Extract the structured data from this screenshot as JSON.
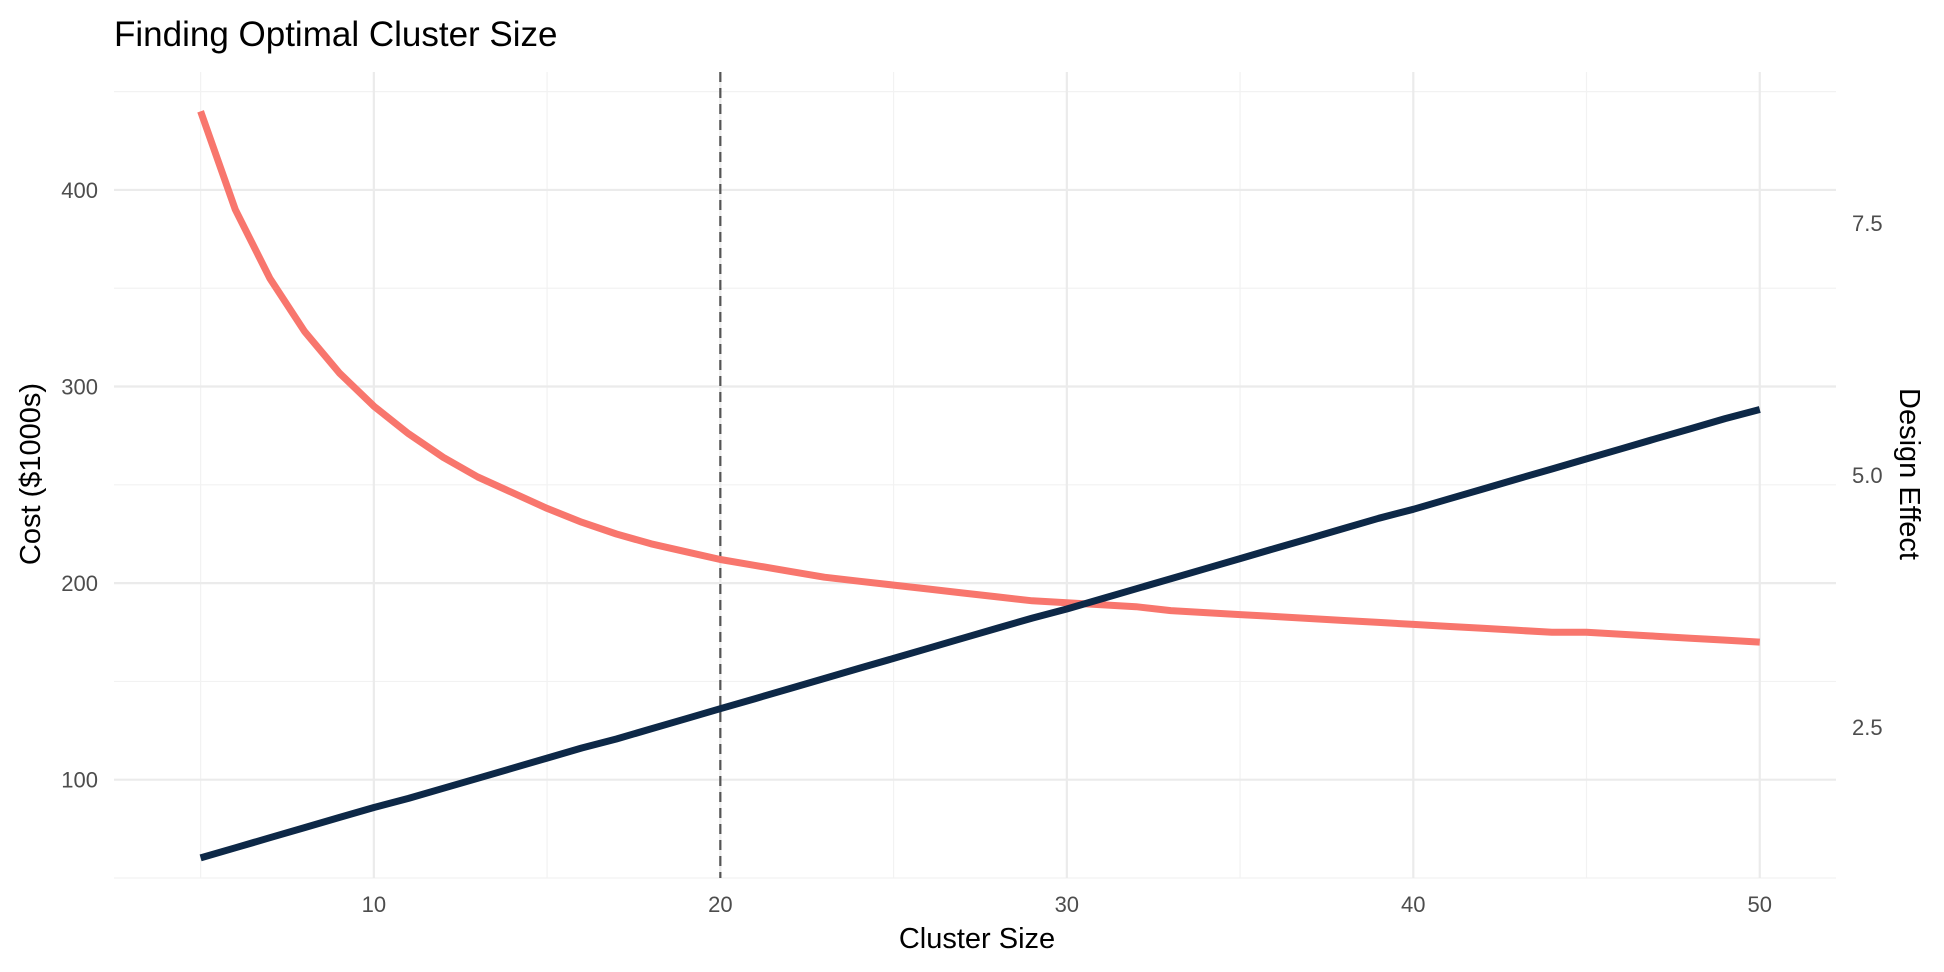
{
  "chart_data": {
    "type": "line",
    "title": "Finding Optimal Cluster Size",
    "xlabel": "Cluster Size",
    "ylabel": "Cost ($1000s)",
    "ylabel_right": "Design Effect",
    "x_ticks": [
      "10",
      "20",
      "30",
      "40",
      "50"
    ],
    "y_ticks": [
      "100",
      "200",
      "300",
      "400"
    ],
    "y_right_ticks": [
      "2.5",
      "5.0",
      "7.5"
    ],
    "xlim": [
      2.5,
      52.2
    ],
    "ylim": [
      50,
      460
    ],
    "ylim_right": [
      1.0,
      9.0
    ],
    "grid": true,
    "legend": "none",
    "reference_line": {
      "x": 20,
      "style": "dashed"
    },
    "x": [
      5,
      6,
      7,
      8,
      9,
      10,
      11,
      12,
      13,
      14,
      15,
      16,
      17,
      18,
      19,
      20,
      21,
      22,
      23,
      24,
      25,
      26,
      27,
      28,
      29,
      30,
      31,
      32,
      33,
      34,
      35,
      36,
      37,
      38,
      39,
      40,
      41,
      42,
      43,
      44,
      45,
      46,
      47,
      48,
      49,
      50
    ],
    "series": [
      {
        "axis": "left",
        "color": "#F8766D",
        "values": [
          440,
          390,
          355,
          328,
          307,
          290,
          276,
          264,
          254,
          246,
          238,
          231,
          225,
          220,
          216,
          212,
          209,
          206,
          203,
          201,
          199,
          197,
          195,
          193,
          191,
          190,
          189,
          188,
          186,
          185,
          184,
          183,
          182,
          181,
          180,
          179,
          178,
          177,
          176,
          175,
          175,
          174,
          173,
          172,
          171,
          170
        ]
      },
      {
        "axis": "right",
        "color": "#0D2847",
        "values": [
          1.2,
          1.3,
          1.4,
          1.5,
          1.6,
          1.7,
          1.79,
          1.89,
          1.99,
          2.09,
          2.19,
          2.29,
          2.38,
          2.48,
          2.58,
          2.68,
          2.78,
          2.88,
          2.98,
          3.08,
          3.18,
          3.28,
          3.38,
          3.48,
          3.58,
          3.67,
          3.77,
          3.87,
          3.97,
          4.07,
          4.17,
          4.27,
          4.37,
          4.47,
          4.57,
          4.66,
          4.76,
          4.86,
          4.96,
          5.06,
          5.16,
          5.26,
          5.36,
          5.46,
          5.56,
          5.65
        ]
      }
    ]
  }
}
